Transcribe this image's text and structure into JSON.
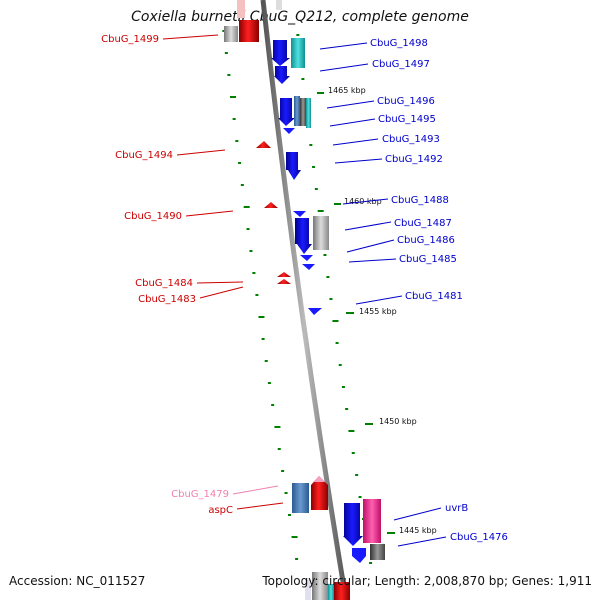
{
  "title": "Coxiella burnetii CbuG_Q212, complete genome",
  "accession": "Accession: NC_011527",
  "topology": "Topology: circular; Length: 2,008,870 bp; Genes: 1,911",
  "colors": {
    "forward_gene": "#0000e6",
    "reverse_gene": "#e60000",
    "pseudo_gene": "#f090b0",
    "backbone": "#888888",
    "tick": "#008000"
  },
  "kbp_markers": [
    "1465 kbp",
    "1460 kbp",
    "1455 kbp",
    "1450 kbp",
    "1445 kbp"
  ],
  "labels_left": [
    {
      "text": "CbuG_1499",
      "color": "#cc0000"
    },
    {
      "text": "CbuG_1494",
      "color": "#cc0000"
    },
    {
      "text": "CbuG_1490",
      "color": "#cc0000"
    },
    {
      "text": "CbuG_1484",
      "color": "#cc0000"
    },
    {
      "text": "CbuG_1483",
      "color": "#cc0000"
    },
    {
      "text": "CbuG_1479",
      "color": "#f080b0"
    },
    {
      "text": "aspC",
      "color": "#cc0000"
    }
  ],
  "labels_right": [
    {
      "text": "CbuG_1498",
      "color": "#0000cc"
    },
    {
      "text": "CbuG_1497",
      "color": "#0000cc"
    },
    {
      "text": "CbuG_1496",
      "color": "#0000cc"
    },
    {
      "text": "CbuG_1495",
      "color": "#0000cc"
    },
    {
      "text": "CbuG_1493",
      "color": "#0000cc"
    },
    {
      "text": "CbuG_1492",
      "color": "#0000cc"
    },
    {
      "text": "CbuG_1488",
      "color": "#0000cc"
    },
    {
      "text": "CbuG_1487",
      "color": "#0000cc"
    },
    {
      "text": "CbuG_1486",
      "color": "#0000cc"
    },
    {
      "text": "CbuG_1485",
      "color": "#0000cc"
    },
    {
      "text": "CbuG_1481",
      "color": "#0000cc"
    },
    {
      "text": "uvrB",
      "color": "#0000cc"
    },
    {
      "text": "CbuG_1476",
      "color": "#0000cc"
    }
  ]
}
